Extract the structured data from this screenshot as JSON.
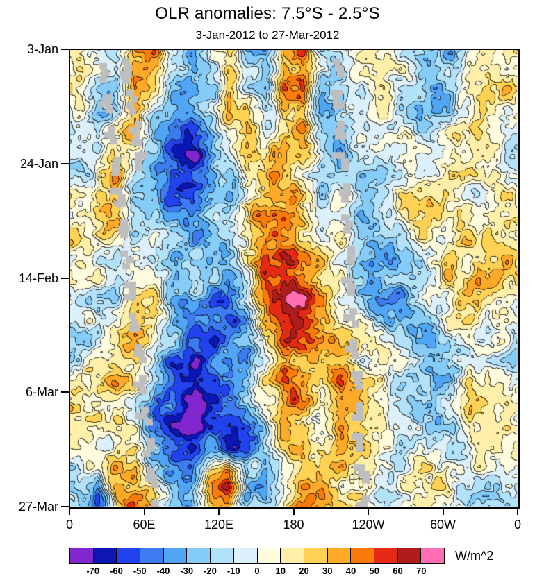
{
  "page": {
    "background": "#FFFFFF"
  },
  "chart_data": {
    "type": "heatmap",
    "title": "OLR anomalies: 7.5°S - 2.5°S",
    "subtitle": "3-Jan-2012 to 27-Mar-2012",
    "x_axis": {
      "ticks": [
        "0",
        "60E",
        "120E",
        "180",
        "120W",
        "60W",
        "0"
      ]
    },
    "y_axis": {
      "ticks": [
        "3-Jan",
        "24-Jan",
        "14-Feb",
        "6-Mar",
        "27-Mar"
      ]
    },
    "colorbar": {
      "unit_label": "W/m^2",
      "levels": [
        -70,
        -60,
        -50,
        -40,
        -30,
        -20,
        -10,
        0,
        10,
        20,
        30,
        40,
        50,
        60,
        70
      ],
      "colors": [
        "#8226CF",
        "#0B16B4",
        "#2142EC",
        "#3D7BF0",
        "#51A5F5",
        "#86CCF8",
        "#B2E1FA",
        "#DCF0FB",
        "#FFFCE0",
        "#FFEFA8",
        "#FFD254",
        "#FFA928",
        "#FB7B0A",
        "#E42A12",
        "#AF1C1C",
        "#FF6EB4"
      ],
      "missing_color": "#BEBEBE"
    },
    "grid": {
      "comment": "Coarse estimate of OLR anomaly field (W/m^2); columns = longitude 0..360E (24 cells), rows = time 3-Jan..27-Mar-2012 (20 cells, top to bottom)",
      "cols": 24,
      "rows": 20,
      "lon_range": [
        0,
        360
      ],
      "time_range": [
        "3-Jan-2012",
        "27-Mar-2012"
      ],
      "values_wm2": [
        [
          10,
          -5,
          -20,
          30,
          35,
          -5,
          -20,
          5,
          20,
          -25,
          -35,
          30,
          45,
          -15,
          -20,
          5,
          15,
          5,
          -5,
          -20,
          -30,
          0,
          15,
          25
        ],
        [
          20,
          -15,
          -30,
          40,
          25,
          -20,
          -35,
          -10,
          30,
          -20,
          -40,
          35,
          50,
          -25,
          -10,
          10,
          10,
          -5,
          -15,
          -30,
          -20,
          10,
          20,
          15
        ],
        [
          5,
          -25,
          -10,
          35,
          -10,
          -35,
          -45,
          -20,
          35,
          15,
          -30,
          25,
          40,
          -30,
          -15,
          15,
          5,
          -10,
          -20,
          -25,
          -10,
          15,
          10,
          5
        ],
        [
          -10,
          -20,
          5,
          25,
          -25,
          -45,
          -55,
          -30,
          20,
          30,
          -15,
          15,
          30,
          -25,
          -20,
          10,
          -5,
          -15,
          -10,
          -15,
          5,
          20,
          5,
          -5
        ],
        [
          -15,
          -5,
          15,
          10,
          -30,
          -55,
          -65,
          -40,
          -10,
          35,
          25,
          20,
          15,
          -20,
          -25,
          5,
          -10,
          -10,
          0,
          -10,
          15,
          25,
          10,
          -10
        ],
        [
          -5,
          10,
          25,
          -10,
          -40,
          -60,
          -70,
          -45,
          -20,
          30,
          35,
          30,
          10,
          -15,
          -20,
          -5,
          -15,
          -5,
          10,
          5,
          20,
          15,
          15,
          0
        ],
        [
          5,
          20,
          30,
          -15,
          -35,
          -50,
          -60,
          -35,
          -25,
          20,
          40,
          40,
          20,
          -10,
          -10,
          -10,
          -20,
          0,
          15,
          10,
          10,
          5,
          20,
          10
        ],
        [
          15,
          25,
          20,
          -20,
          -25,
          -40,
          -45,
          -25,
          -15,
          25,
          45,
          50,
          30,
          0,
          -5,
          -15,
          -25,
          -10,
          10,
          15,
          5,
          10,
          25,
          20
        ],
        [
          20,
          15,
          5,
          -15,
          -15,
          -30,
          -35,
          -30,
          -20,
          15,
          50,
          55,
          40,
          10,
          0,
          -20,
          -35,
          -20,
          5,
          10,
          15,
          20,
          30,
          25
        ],
        [
          10,
          5,
          -10,
          -10,
          -5,
          -20,
          -30,
          -35,
          -30,
          5,
          55,
          65,
          50,
          20,
          5,
          -15,
          -40,
          -30,
          -10,
          5,
          20,
          25,
          35,
          20
        ],
        [
          0,
          -10,
          -15,
          5,
          10,
          -15,
          -25,
          -40,
          -40,
          -10,
          50,
          75,
          60,
          30,
          10,
          -10,
          -30,
          -35,
          -15,
          -5,
          15,
          30,
          30,
          10
        ],
        [
          -10,
          -15,
          -5,
          15,
          20,
          -20,
          -35,
          -45,
          -45,
          -20,
          40,
          65,
          55,
          35,
          20,
          -5,
          -20,
          -25,
          -20,
          -10,
          10,
          25,
          20,
          0
        ],
        [
          -15,
          -5,
          10,
          25,
          15,
          -30,
          -45,
          -50,
          -40,
          -25,
          30,
          60,
          50,
          30,
          25,
          10,
          -10,
          -15,
          -25,
          -15,
          5,
          15,
          10,
          -10
        ],
        [
          -5,
          5,
          20,
          30,
          5,
          -40,
          -55,
          -55,
          -35,
          -30,
          20,
          55,
          45,
          25,
          30,
          20,
          -5,
          -10,
          -15,
          -20,
          -5,
          10,
          5,
          -15
        ],
        [
          5,
          15,
          25,
          20,
          -10,
          -50,
          -65,
          -60,
          -45,
          -25,
          15,
          50,
          40,
          20,
          35,
          30,
          10,
          -5,
          -10,
          -25,
          -15,
          20,
          15,
          -5
        ],
        [
          10,
          20,
          15,
          5,
          -25,
          -60,
          -75,
          -65,
          -55,
          -30,
          5,
          40,
          35,
          15,
          30,
          35,
          20,
          5,
          -5,
          -15,
          10,
          45,
          25,
          5
        ],
        [
          15,
          10,
          5,
          -10,
          -35,
          -65,
          -70,
          -55,
          -60,
          -40,
          -10,
          30,
          25,
          10,
          25,
          30,
          25,
          10,
          5,
          -10,
          -15,
          30,
          15,
          10
        ],
        [
          5,
          -5,
          10,
          15,
          -25,
          -50,
          -55,
          -45,
          -50,
          -45,
          -20,
          20,
          30,
          20,
          15,
          20,
          15,
          5,
          10,
          5,
          -10,
          10,
          5,
          5
        ],
        [
          -5,
          -15,
          25,
          35,
          -10,
          -35,
          -40,
          25,
          40,
          -35,
          -30,
          10,
          35,
          30,
          10,
          10,
          5,
          0,
          15,
          10,
          -5,
          5,
          -5,
          -5
        ],
        [
          -15,
          -50,
          25,
          45,
          35,
          -10,
          -25,
          40,
          50,
          -30,
          -35,
          5,
          40,
          35,
          20,
          5,
          -5,
          5,
          20,
          15,
          5,
          -5,
          -10,
          -15
        ]
      ]
    },
    "noise_texture": {
      "seed": 11,
      "octaves": [
        {
          "scale": 30,
          "amp": 17
        },
        {
          "scale": 14,
          "amp": 10
        },
        {
          "scale": 7,
          "amp": 6
        }
      ]
    },
    "missing_data_streaks": [
      {
        "x0": 0.077,
        "y0": 0.03,
        "x1": 0.195,
        "y1": 1.0,
        "dash": [
          3,
          2
        ]
      },
      {
        "x0": 0.125,
        "y0": 0.02,
        "x1": 0.16,
        "y1": 0.25,
        "dash": [
          4,
          1
        ]
      },
      {
        "x0": 0.597,
        "y0": 0.02,
        "x1": 0.66,
        "y1": 1.0,
        "dash": [
          3,
          2
        ]
      }
    ]
  }
}
